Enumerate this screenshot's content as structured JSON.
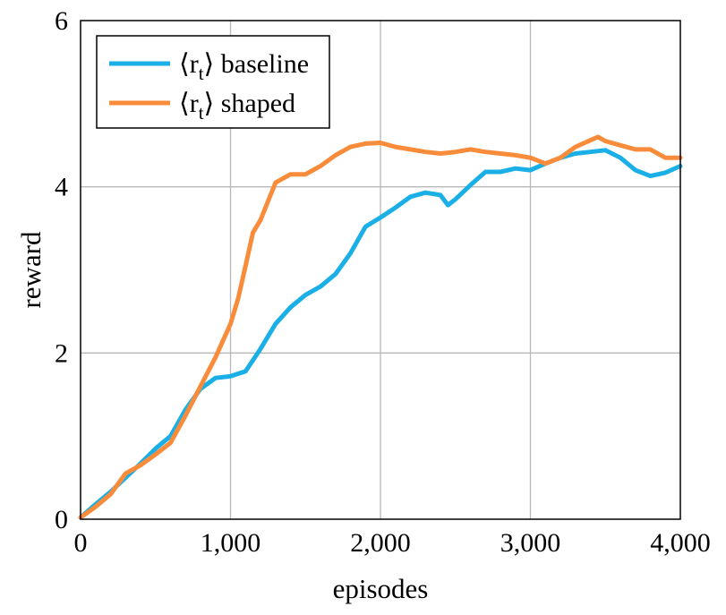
{
  "chart_data": {
    "type": "line",
    "xlabel": "episodes",
    "ylabel": "reward",
    "xlim": [
      0,
      4000
    ],
    "ylim": [
      0,
      6
    ],
    "x_ticks": [
      0,
      1000,
      2000,
      3000,
      4000
    ],
    "x_tick_labels": [
      "0",
      "1,000",
      "2,000",
      "3,000",
      "4,000"
    ],
    "y_ticks": [
      0,
      2,
      4,
      6
    ],
    "y_tick_labels": [
      "0",
      "2",
      "4",
      "6"
    ],
    "grid": true,
    "legend": {
      "placement": "top-left",
      "entries": [
        {
          "label_math": "⟨r",
          "label_sub": "t",
          "label_close": "⟩",
          "label_text": "baseline"
        },
        {
          "label_math": "⟨r",
          "label_sub": "t",
          "label_close": "⟩",
          "label_text": "shaped"
        }
      ]
    },
    "series": [
      {
        "name": "⟨r_t⟩ baseline",
        "color": "#1aafe6",
        "x": [
          0,
          100,
          200,
          300,
          400,
          500,
          600,
          700,
          800,
          900,
          1000,
          1100,
          1200,
          1300,
          1400,
          1500,
          1600,
          1700,
          1800,
          1900,
          2000,
          2100,
          2200,
          2300,
          2400,
          2450,
          2500,
          2600,
          2700,
          2800,
          2900,
          3000,
          3100,
          3200,
          3300,
          3400,
          3500,
          3600,
          3700,
          3800,
          3900,
          4000
        ],
        "y": [
          0.02,
          0.18,
          0.33,
          0.5,
          0.67,
          0.85,
          1.0,
          1.32,
          1.57,
          1.7,
          1.72,
          1.78,
          2.05,
          2.35,
          2.55,
          2.7,
          2.8,
          2.95,
          3.2,
          3.52,
          3.63,
          3.75,
          3.88,
          3.93,
          3.9,
          3.78,
          3.85,
          4.02,
          4.18,
          4.18,
          4.22,
          4.2,
          4.28,
          4.35,
          4.4,
          4.42,
          4.44,
          4.35,
          4.2,
          4.13,
          4.17,
          4.25
        ]
      },
      {
        "name": "⟨r_t⟩ shaped",
        "color": "#f98c3a",
        "x": [
          0,
          100,
          200,
          300,
          400,
          500,
          600,
          700,
          800,
          900,
          1000,
          1050,
          1100,
          1150,
          1200,
          1300,
          1400,
          1500,
          1600,
          1700,
          1800,
          1900,
          2000,
          2100,
          2200,
          2300,
          2400,
          2500,
          2600,
          2700,
          2800,
          2900,
          3000,
          3100,
          3200,
          3300,
          3400,
          3450,
          3500,
          3600,
          3700,
          3800,
          3900,
          4000
        ],
        "y": [
          0.02,
          0.15,
          0.3,
          0.55,
          0.65,
          0.78,
          0.92,
          1.25,
          1.6,
          1.95,
          2.35,
          2.65,
          3.05,
          3.45,
          3.6,
          4.05,
          4.15,
          4.15,
          4.25,
          4.38,
          4.48,
          4.52,
          4.53,
          4.48,
          4.45,
          4.42,
          4.4,
          4.42,
          4.45,
          4.42,
          4.4,
          4.38,
          4.35,
          4.28,
          4.35,
          4.48,
          4.56,
          4.6,
          4.55,
          4.5,
          4.45,
          4.45,
          4.35,
          4.35
        ]
      }
    ]
  }
}
